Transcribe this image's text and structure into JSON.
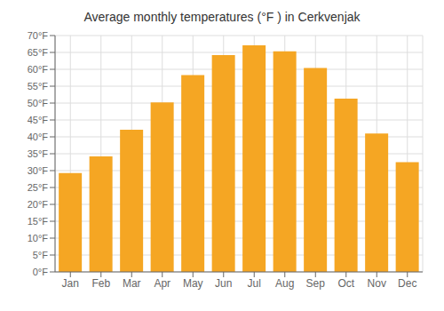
{
  "chart_data": {
    "type": "bar",
    "title": "Average monthly temperatures (°F ) in Cerkvenjak",
    "categories": [
      "Jan",
      "Feb",
      "Mar",
      "Apr",
      "May",
      "Jun",
      "Jul",
      "Aug",
      "Sep",
      "Oct",
      "Nov",
      "Dec"
    ],
    "values": [
      29.3,
      34.2,
      42.1,
      50.2,
      58.3,
      64.2,
      67.1,
      65.3,
      60.4,
      51.3,
      41.0,
      32.5
    ],
    "color": "#F5A623",
    "ylim": [
      0,
      70
    ],
    "yticks": [
      {
        "value": 0,
        "label": "0°F"
      },
      {
        "value": 5,
        "label": "5°F"
      },
      {
        "value": 10,
        "label": "10°F"
      },
      {
        "value": 15,
        "label": "15°F"
      },
      {
        "value": 20,
        "label": "20°F"
      },
      {
        "value": 25,
        "label": "25°F"
      },
      {
        "value": 30,
        "label": "30°F"
      },
      {
        "value": 35,
        "label": "35°F"
      },
      {
        "value": 40,
        "label": "40°F"
      },
      {
        "value": 45,
        "label": "45°F"
      },
      {
        "value": 50,
        "label": "50°F"
      },
      {
        "value": 55,
        "label": "55°F"
      },
      {
        "value": 60,
        "label": "60°F"
      },
      {
        "value": 65,
        "label": "65°F"
      },
      {
        "value": 70,
        "label": "70°F"
      }
    ],
    "grid": true
  }
}
